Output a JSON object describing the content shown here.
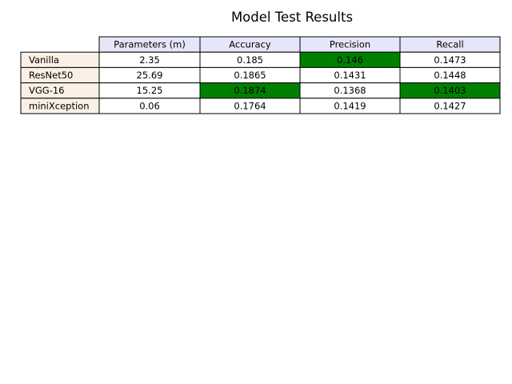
{
  "chart_data": {
    "type": "table",
    "title": "Model Test Results",
    "columns": [
      "Parameters (m)",
      "Accuracy",
      "Precision",
      "Recall"
    ],
    "rows": [
      {
        "label": "Vanilla",
        "cells": [
          "2.35",
          "0.185",
          "0.146",
          "0.1473"
        ]
      },
      {
        "label": "ResNet50",
        "cells": [
          "25.69",
          "0.1865",
          "0.1431",
          "0.1448"
        ]
      },
      {
        "label": "VGG-16",
        "cells": [
          "15.25",
          "0.1874",
          "0.1368",
          "0.1403"
        ]
      },
      {
        "label": "miniXception",
        "cells": [
          "0.06",
          "0.1764",
          "0.1419",
          "0.1427"
        ]
      }
    ],
    "highlighted_cells": [
      {
        "row": 0,
        "col": 2
      },
      {
        "row": 2,
        "col": 1
      },
      {
        "row": 2,
        "col": 3
      }
    ],
    "colors": {
      "header_bg": "#e6e6fa",
      "row_label_bg": "#faf0e6",
      "cell_bg": "#ffffff",
      "highlight_bg": "#008000",
      "border": "#000000"
    }
  }
}
